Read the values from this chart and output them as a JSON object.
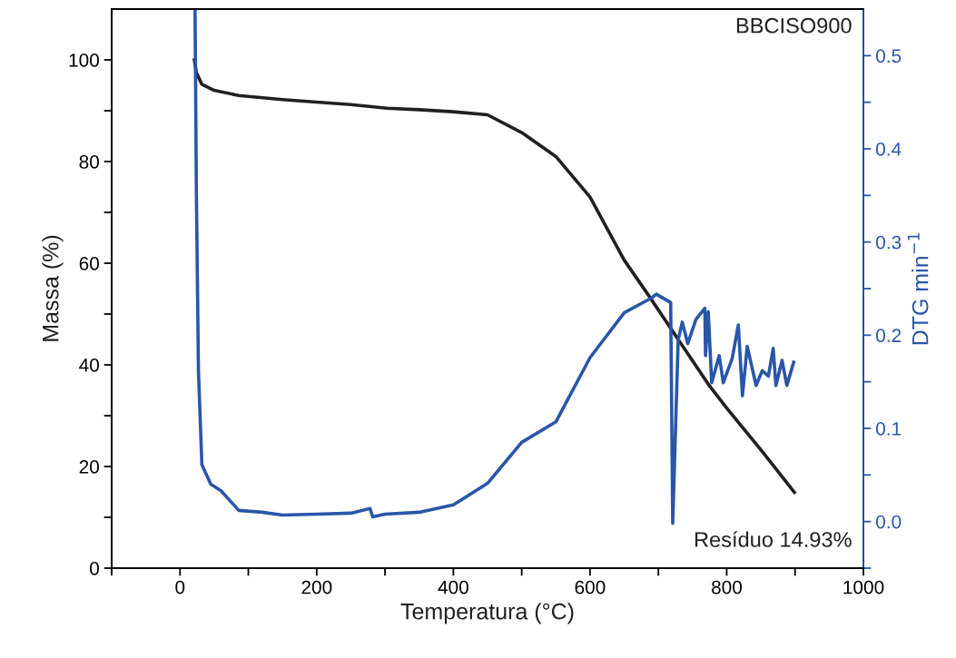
{
  "chart_data": {
    "type": "line",
    "xlabel": "Temperatura (°C)",
    "ylabel": "Massa (%)",
    "y2label": "DTG min$^{−1}$",
    "annotations": [
      "BBCISO900",
      "Resíduo 14.93%"
    ],
    "series": [
      {
        "color": "#231f20",
        "x": [
          21,
          24,
          32,
          50,
          86,
          150,
          200,
          250,
          303,
          350,
          400,
          450,
          500,
          550,
          600,
          650,
          684,
          733,
          773,
          800,
          850,
          899
        ],
        "values": [
          100,
          97.5,
          95.2,
          94,
          93,
          92.2,
          91.7,
          91.2,
          90.5,
          90.2,
          89.8,
          89.2,
          85.7,
          81,
          73,
          60.6,
          54,
          44.2,
          36.2,
          31.5,
          23.3,
          14.93
        ]
      },
      {
        "color": "#2a56a8",
        "axis": "y2",
        "x": [
          22,
          24,
          27,
          32,
          45,
          60,
          86,
          120,
          150,
          200,
          250,
          278,
          282,
          300,
          350,
          400,
          450,
          500,
          550,
          600,
          650,
          690,
          697,
          718,
          721,
          729,
          735,
          743,
          755,
          768,
          769,
          773,
          778,
          789,
          795,
          808,
          817,
          823,
          830,
          843,
          852,
          861,
          868,
          872,
          881,
          888,
          898
        ],
        "values": [
          0.55,
          0.35,
          0.161,
          0.061,
          0.04,
          0.033,
          0.012,
          0.01,
          0.007,
          0.008,
          0.009,
          0.014,
          0.005,
          0.008,
          0.01,
          0.018,
          0.041,
          0.085,
          0.107,
          0.176,
          0.224,
          0.24,
          0.244,
          0.235,
          -0.002,
          0.195,
          0.214,
          0.191,
          0.217,
          0.229,
          0.178,
          0.225,
          0.149,
          0.178,
          0.149,
          0.175,
          0.211,
          0.135,
          0.188,
          0.146,
          0.162,
          0.156,
          0.186,
          0.146,
          0.173,
          0.146,
          0.171
        ]
      }
    ],
    "xlim": [
      -100,
      1000
    ],
    "xticks": [
      {
        "value": -100,
        "label": null
      },
      0,
      {
        "value": 100,
        "label": null
      },
      200,
      {
        "value": 300,
        "label": null
      },
      400,
      {
        "value": 500,
        "label": null
      },
      600,
      {
        "value": 700,
        "label": null
      },
      800,
      {
        "value": 900,
        "label": null
      },
      1000
    ],
    "ylim": [
      0,
      110
    ],
    "yticks": [
      0,
      {
        "value": 10,
        "label": null
      },
      20,
      {
        "value": 30,
        "label": null
      },
      40,
      {
        "value": 50,
        "label": null
      },
      60,
      {
        "value": 70,
        "label": null
      },
      80,
      {
        "value": 90,
        "label": null
      },
      100
    ],
    "y2lim": [
      -0.05,
      0.55
    ],
    "y2ticks": [
      {
        "value": -0.05,
        "label": null
      },
      {
        "value": 0,
        "label": "0.0"
      },
      {
        "value": 0.05,
        "label": null
      },
      0.1,
      {
        "value": 0.15,
        "label": null
      },
      0.2,
      {
        "value": 0.25,
        "label": null
      },
      0.3,
      {
        "value": 0.35,
        "label": null
      },
      0.4,
      {
        "value": 0.45,
        "label": null
      },
      0.5
    ],
    "grid": false,
    "legend": false
  }
}
